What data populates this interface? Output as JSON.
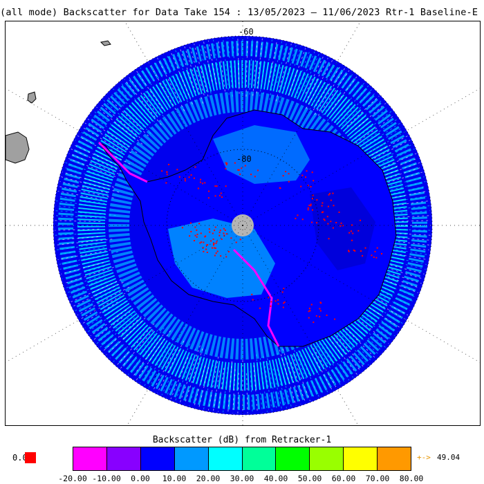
{
  "title": "(all mode) Backscatter for Data Take 154 : 13/05/2023 – 11/06/2023 Rtr-1 Baseline-E",
  "map": {
    "projection": "south-polar-stereographic",
    "lat_labels": [
      "-60",
      "-80"
    ],
    "pole_hole_color": "#b4b4b4",
    "land_color": "#a0a0a0",
    "colors": {
      "ocean_dark_blue": "#0000ee",
      "ocean_mid_blue": "#0099ff",
      "ocean_cyan": "#00ffff",
      "ice_dark_blue": "#0000ff",
      "ice_light_blue": "#0099ff",
      "coast_magenta": "#ff00ff",
      "hotspot_red": "#ff0000"
    }
  },
  "colorbar": {
    "title": "Backscatter (dB) from Retracker-1",
    "low_value": "0.0",
    "low_color": "#ff0000",
    "high_arrow": "+->",
    "high_value": "49.04",
    "high_color": "#e69500",
    "tick_labels": [
      "-20.00",
      "-10.00",
      "0.00",
      "10.00",
      "20.00",
      "30.00",
      "40.00",
      "50.00",
      "60.00",
      "70.00",
      "80.00"
    ],
    "colors": [
      "#ff00ff",
      "#8800ff",
      "#0000ff",
      "#0099ff",
      "#00ffff",
      "#00ff99",
      "#00ff00",
      "#99ff00",
      "#ffff00",
      "#ff9900"
    ]
  }
}
